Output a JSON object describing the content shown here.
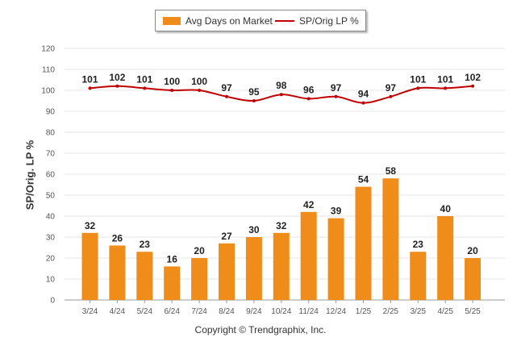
{
  "legend": {
    "bar_label": "Avg Days on Market",
    "line_label": "SP/Orig LP %"
  },
  "ylabel": "SP/Orig. LP %",
  "copyright": "Copyright © Trendgraphix, Inc.",
  "colors": {
    "bar": "#f08c1a",
    "line": "#c00000",
    "grid": "#e6e6e6",
    "axis": "#999999"
  },
  "chart_data": {
    "type": "bar",
    "categories": [
      "3/24",
      "4/24",
      "5/24",
      "6/24",
      "7/24",
      "8/24",
      "9/24",
      "10/24",
      "11/24",
      "12/24",
      "1/25",
      "2/25",
      "3/25",
      "4/25",
      "5/25"
    ],
    "series": [
      {
        "name": "Avg Days on Market",
        "type": "bar",
        "values": [
          32,
          26,
          23,
          16,
          20,
          27,
          30,
          32,
          42,
          39,
          54,
          58,
          23,
          40,
          20
        ]
      },
      {
        "name": "SP/Orig LP %",
        "type": "line",
        "values": [
          101,
          102,
          101,
          100,
          100,
          97,
          95,
          98,
          96,
          97,
          94,
          97,
          101,
          101,
          102
        ]
      }
    ],
    "ylabel": "SP/Orig. LP %",
    "ylim": [
      0,
      120
    ],
    "yticks": [
      0,
      10,
      20,
      30,
      40,
      50,
      60,
      70,
      80,
      90,
      100,
      110,
      120
    ],
    "grid": true,
    "legend_position": "top-center"
  }
}
